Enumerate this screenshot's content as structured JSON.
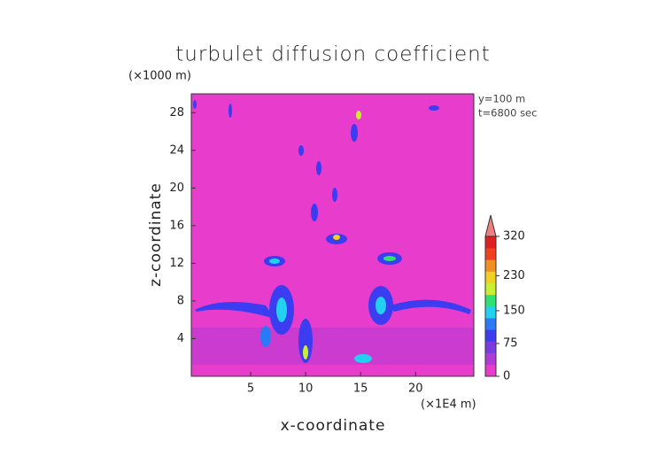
{
  "chart_data": {
    "type": "heatmap",
    "title": "turbulet diffusion coefficient",
    "x_label": "x-coordinate",
    "y_label": "z-coordinate",
    "x_unit": "(×1E4 m)",
    "y_unit": "(×1000 m)",
    "annotations": [
      "y=100 m",
      "t=6800 sec"
    ],
    "xlim": [
      -0.4,
      25.3
    ],
    "xticks": [
      5,
      10,
      15,
      20
    ],
    "ylim": [
      0,
      30
    ],
    "yticks": [
      4,
      8,
      12,
      16,
      20,
      24,
      28
    ],
    "background_color": "#e83ccd",
    "colorbar": {
      "lim": [
        0,
        320
      ],
      "ticks": [
        0,
        75,
        150,
        230,
        320
      ],
      "colors": [
        "#e83ccd",
        "#b03cd8",
        "#7a3ce0",
        "#3c3cf0",
        "#2a7af5",
        "#22d0f0",
        "#30e070",
        "#c8f030",
        "#f0d020",
        "#f09020",
        "#f04020",
        "#e02020"
      ],
      "extend_color": "#f08080"
    }
  }
}
